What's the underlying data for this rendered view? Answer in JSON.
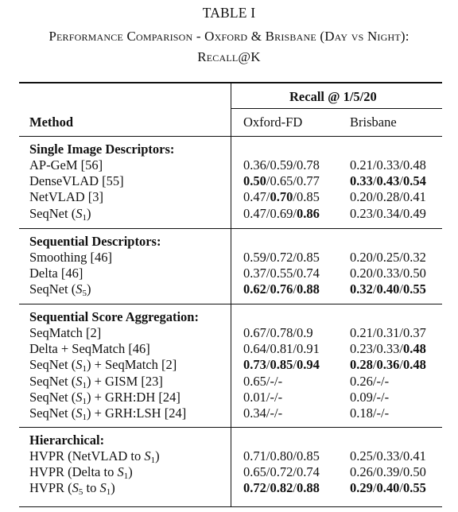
{
  "caption": {
    "label": "TABLE I",
    "title": "Performance Comparison - Oxford & Brisbane (Day vs Night):",
    "subtitle": "Recall@K"
  },
  "table": {
    "group_header": "Recall @ 1/5/20",
    "col_method": "Method",
    "col_oxford": "Oxford-FD",
    "col_brisbane": "Brisbane",
    "sections": [
      {
        "title": "Single Image Descriptors:",
        "rows": [
          {
            "method": "AP-GeM [56]",
            "oxford": [
              "0.36",
              "0.59",
              "0.78"
            ],
            "brisbane": [
              "0.21",
              "0.33",
              "0.48"
            ]
          },
          {
            "method": "DenseVLAD [55]",
            "oxford": [
              "0.50",
              "0.65",
              "0.77"
            ],
            "brisbane": [
              "0.33",
              "0.43",
              "0.54"
            ]
          },
          {
            "method": "NetVLAD [3]",
            "oxford": [
              "0.47",
              "0.70",
              "0.85"
            ],
            "brisbane": [
              "0.20",
              "0.28",
              "0.41"
            ]
          },
          {
            "method_prefix": "SeqNet (",
            "method_var": "S",
            "method_sub": "1",
            "method_suffix": ")",
            "oxford": [
              "0.47",
              "0.69",
              "0.86"
            ],
            "brisbane": [
              "0.23",
              "0.34",
              "0.49"
            ]
          }
        ]
      },
      {
        "title": "Sequential Descriptors:",
        "rows": [
          {
            "method": "Smoothing [46]",
            "oxford": [
              "0.59",
              "0.72",
              "0.85"
            ],
            "brisbane": [
              "0.20",
              "0.25",
              "0.32"
            ]
          },
          {
            "method": "Delta [46]",
            "oxford": [
              "0.37",
              "0.55",
              "0.74"
            ],
            "brisbane": [
              "0.20",
              "0.33",
              "0.50"
            ]
          },
          {
            "method_prefix": "SeqNet (",
            "method_var": "S",
            "method_sub": "5",
            "method_suffix": ")",
            "oxford": [
              "0.62",
              "0.76",
              "0.88"
            ],
            "brisbane": [
              "0.32",
              "0.40",
              "0.55"
            ]
          }
        ]
      },
      {
        "title": "Sequential Score Aggregation:",
        "rows": [
          {
            "method": "SeqMatch [2]",
            "oxford": [
              "0.67",
              "0.78",
              "0.9"
            ],
            "brisbane": [
              "0.21",
              "0.31",
              "0.37"
            ]
          },
          {
            "method": "Delta + SeqMatch [46]",
            "oxford": [
              "0.64",
              "0.81",
              "0.91"
            ],
            "brisbane": [
              "0.23",
              "0.33",
              "0.48"
            ]
          },
          {
            "method_prefix": "SeqNet (",
            "method_var": "S",
            "method_sub": "1",
            "method_suffix": ") + SeqMatch [2]",
            "oxford": [
              "0.73",
              "0.85",
              "0.94"
            ],
            "brisbane": [
              "0.28",
              "0.36",
              "0.48"
            ]
          },
          {
            "method_prefix": "SeqNet (",
            "method_var": "S",
            "method_sub": "1",
            "method_suffix": ") + GISM [23]",
            "oxford": [
              "0.65",
              "-",
              "-"
            ],
            "brisbane": [
              "0.26",
              "-",
              "-"
            ]
          },
          {
            "method_prefix": "SeqNet (",
            "method_var": "S",
            "method_sub": "1",
            "method_suffix": ") + GRH:DH [24]",
            "oxford": [
              "0.01",
              "-",
              "-"
            ],
            "brisbane": [
              "0.09",
              "-",
              "-"
            ]
          },
          {
            "method_prefix": "SeqNet (",
            "method_var": "S",
            "method_sub": "1",
            "method_suffix": ") + GRH:LSH [24]",
            "oxford": [
              "0.34",
              "-",
              "-"
            ],
            "brisbane": [
              "0.18",
              "-",
              "-"
            ]
          }
        ]
      },
      {
        "title": "Hierarchical:",
        "rows": [
          {
            "method_prefix": "HVPR (NetVLAD to ",
            "method_var": "S",
            "method_sub": "1",
            "method_suffix": ")",
            "oxford": [
              "0.71",
              "0.80",
              "0.85"
            ],
            "brisbane": [
              "0.25",
              "0.33",
              "0.41"
            ]
          },
          {
            "method_prefix": "HVPR (Delta to ",
            "method_var": "S",
            "method_sub": "1",
            "method_suffix": ")",
            "oxford": [
              "0.65",
              "0.72",
              "0.74"
            ],
            "brisbane": [
              "0.26",
              "0.39",
              "0.50"
            ]
          },
          {
            "method_prefix": "HVPR (",
            "method_var": "S",
            "method_sub": "5",
            "method_mid": " to ",
            "method_var2": "S",
            "method_sub2": "1",
            "method_suffix": ")",
            "oxford": [
              "0.72",
              "0.82",
              "0.88"
            ],
            "brisbane": [
              "0.29",
              "0.40",
              "0.55"
            ]
          }
        ]
      }
    ]
  }
}
